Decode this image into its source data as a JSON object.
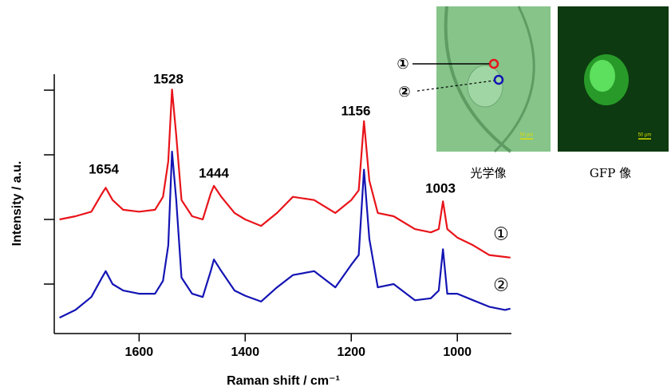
{
  "chart_data": {
    "type": "line",
    "x_label": "Raman shift / cm⁻¹",
    "y_label": "Intensity / a.u.",
    "xlim": [
      1760,
      898
    ],
    "xticks": [
      1600,
      1400,
      1200,
      1000
    ],
    "ylim": [
      0.25,
      4.25
    ],
    "yticks": [
      1,
      2,
      3,
      4
    ],
    "x": [
      1750,
      1720,
      1690,
      1670,
      1663,
      1650,
      1630,
      1600,
      1570,
      1555,
      1545,
      1538,
      1530,
      1520,
      1500,
      1480,
      1465,
      1459,
      1445,
      1420,
      1400,
      1370,
      1340,
      1310,
      1270,
      1230,
      1200,
      1186,
      1176,
      1166,
      1150,
      1120,
      1080,
      1050,
      1035,
      1027,
      1019,
      1000,
      970,
      940,
      910,
      900
    ],
    "series": [
      {
        "name": "①",
        "color": "#e8141a",
        "values": [
          2.0,
          2.05,
          2.12,
          2.4,
          2.49,
          2.3,
          2.15,
          2.12,
          2.15,
          2.35,
          2.9,
          4.01,
          3.3,
          2.3,
          2.05,
          2.0,
          2.4,
          2.52,
          2.35,
          2.1,
          2.0,
          1.9,
          2.1,
          2.35,
          2.3,
          2.1,
          2.3,
          2.45,
          3.52,
          2.6,
          2.1,
          2.05,
          1.85,
          1.8,
          1.85,
          2.28,
          1.85,
          1.72,
          1.6,
          1.45,
          1.42,
          1.41
        ]
      },
      {
        "name": "②",
        "color": "#1414b4",
        "values": [
          0.48,
          0.6,
          0.8,
          1.1,
          1.2,
          1.0,
          0.9,
          0.85,
          0.85,
          1.05,
          1.6,
          3.05,
          2.3,
          1.1,
          0.85,
          0.8,
          1.2,
          1.38,
          1.2,
          0.9,
          0.82,
          0.73,
          0.95,
          1.14,
          1.2,
          0.95,
          1.3,
          1.45,
          2.77,
          1.7,
          0.95,
          1.0,
          0.75,
          0.78,
          0.9,
          1.54,
          0.85,
          0.85,
          0.75,
          0.65,
          0.6,
          0.62
        ]
      }
    ],
    "annotations": [
      "1654",
      "1528",
      "1444",
      "1156",
      "1003"
    ]
  },
  "inset": {
    "optical_caption": "光学像",
    "gfp_caption": "GFP 像",
    "point_labels": [
      "①",
      "②"
    ],
    "scale_bar": "50 μm"
  }
}
